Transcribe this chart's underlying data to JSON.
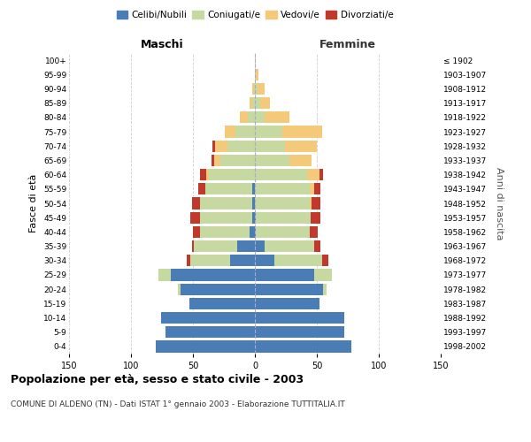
{
  "age_groups": [
    "0-4",
    "5-9",
    "10-14",
    "15-19",
    "20-24",
    "25-29",
    "30-34",
    "35-39",
    "40-44",
    "45-49",
    "50-54",
    "55-59",
    "60-64",
    "65-69",
    "70-74",
    "75-79",
    "80-84",
    "85-89",
    "90-94",
    "95-99",
    "100+"
  ],
  "birth_years": [
    "1998-2002",
    "1993-1997",
    "1988-1992",
    "1983-1987",
    "1978-1982",
    "1973-1977",
    "1968-1972",
    "1963-1967",
    "1958-1962",
    "1953-1957",
    "1948-1952",
    "1943-1947",
    "1938-1942",
    "1933-1937",
    "1928-1932",
    "1923-1927",
    "1918-1922",
    "1913-1917",
    "1908-1912",
    "1903-1907",
    "≤ 1902"
  ],
  "colors": {
    "celibe": "#4a7cb5",
    "coniugato": "#c5d9a0",
    "vedovo": "#f5c97a",
    "divorziato": "#c0392b"
  },
  "males": {
    "celibe": [
      80,
      72,
      76,
      53,
      60,
      68,
      20,
      14,
      4,
      2,
      2,
      2,
      0,
      0,
      0,
      0,
      0,
      0,
      0,
      0,
      0
    ],
    "coniugato": [
      0,
      0,
      0,
      0,
      2,
      10,
      32,
      35,
      40,
      42,
      42,
      38,
      37,
      28,
      22,
      16,
      6,
      2,
      1,
      0,
      0
    ],
    "vedovo": [
      0,
      0,
      0,
      0,
      0,
      0,
      0,
      0,
      0,
      0,
      0,
      0,
      2,
      5,
      10,
      8,
      6,
      2,
      1,
      0,
      0
    ],
    "divorziato": [
      0,
      0,
      0,
      0,
      0,
      0,
      3,
      2,
      6,
      8,
      7,
      6,
      5,
      2,
      2,
      0,
      0,
      0,
      0,
      0,
      0
    ]
  },
  "females": {
    "nubile": [
      78,
      72,
      72,
      52,
      55,
      48,
      16,
      8,
      1,
      1,
      0,
      0,
      0,
      0,
      0,
      0,
      0,
      0,
      0,
      0,
      0
    ],
    "coniugata": [
      0,
      0,
      0,
      0,
      3,
      14,
      38,
      40,
      43,
      44,
      44,
      44,
      42,
      28,
      24,
      22,
      8,
      4,
      2,
      1,
      0
    ],
    "vedova": [
      0,
      0,
      0,
      0,
      0,
      0,
      0,
      0,
      0,
      0,
      2,
      4,
      10,
      18,
      26,
      32,
      20,
      8,
      6,
      2,
      1
    ],
    "divorziata": [
      0,
      0,
      0,
      0,
      0,
      0,
      5,
      5,
      7,
      8,
      7,
      5,
      3,
      0,
      0,
      0,
      0,
      0,
      0,
      0,
      0
    ]
  },
  "xlim": 150,
  "title": "Popolazione per età, sesso e stato civile - 2003",
  "subtitle": "COMUNE DI ALDENO (TN) - Dati ISTAT 1° gennaio 2003 - Elaborazione TUTTITALIA.IT",
  "ylabel_left": "Fasce di età",
  "ylabel_right": "Anni di nascita",
  "label_maschi": "Maschi",
  "label_femmine": "Femmine",
  "bg_color": "#ffffff",
  "grid_color": "#cccccc",
  "legend_labels": [
    "Celibi/Nubili",
    "Coniugati/e",
    "Vedovi/e",
    "Divorziati/e"
  ]
}
